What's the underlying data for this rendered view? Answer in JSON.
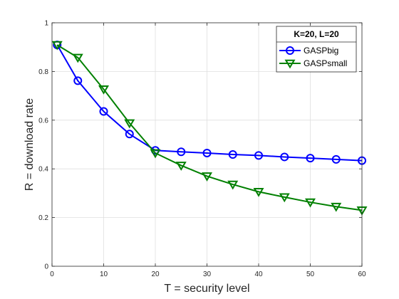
{
  "chart_data": {
    "type": "line",
    "title": "",
    "xlabel": "T = security level",
    "ylabel": "R = download rate",
    "xlim": [
      0,
      60
    ],
    "ylim": [
      0,
      1
    ],
    "xticks": [
      0,
      10,
      20,
      30,
      40,
      50,
      60
    ],
    "yticks": [
      0,
      0.2,
      0.4,
      0.6,
      0.8,
      1
    ],
    "xtick_labels": [
      "0",
      "10",
      "20",
      "30",
      "40",
      "50",
      "60"
    ],
    "ytick_labels": [
      "0",
      "0.2",
      "0.4",
      "0.6",
      "0.8",
      "1"
    ],
    "grid": true,
    "legend": {
      "title": "K=20, L=20",
      "placement": "top-right"
    },
    "series": [
      {
        "name": "GASPbig",
        "color": "#0000ff",
        "marker": "circle",
        "x": [
          1,
          5,
          10,
          15,
          20,
          25,
          30,
          35,
          40,
          45,
          50,
          55,
          60
        ],
        "y": [
          0.909,
          0.762,
          0.636,
          0.543,
          0.476,
          0.47,
          0.465,
          0.459,
          0.455,
          0.449,
          0.444,
          0.439,
          0.434
        ]
      },
      {
        "name": "GASPsmall",
        "color": "#008000",
        "marker": "triangle-down",
        "x": [
          1,
          5,
          10,
          15,
          20,
          25,
          30,
          35,
          40,
          45,
          50,
          55,
          60
        ],
        "y": [
          0.909,
          0.857,
          0.727,
          0.588,
          0.465,
          0.414,
          0.37,
          0.336,
          0.306,
          0.284,
          0.263,
          0.245,
          0.23
        ]
      }
    ]
  }
}
